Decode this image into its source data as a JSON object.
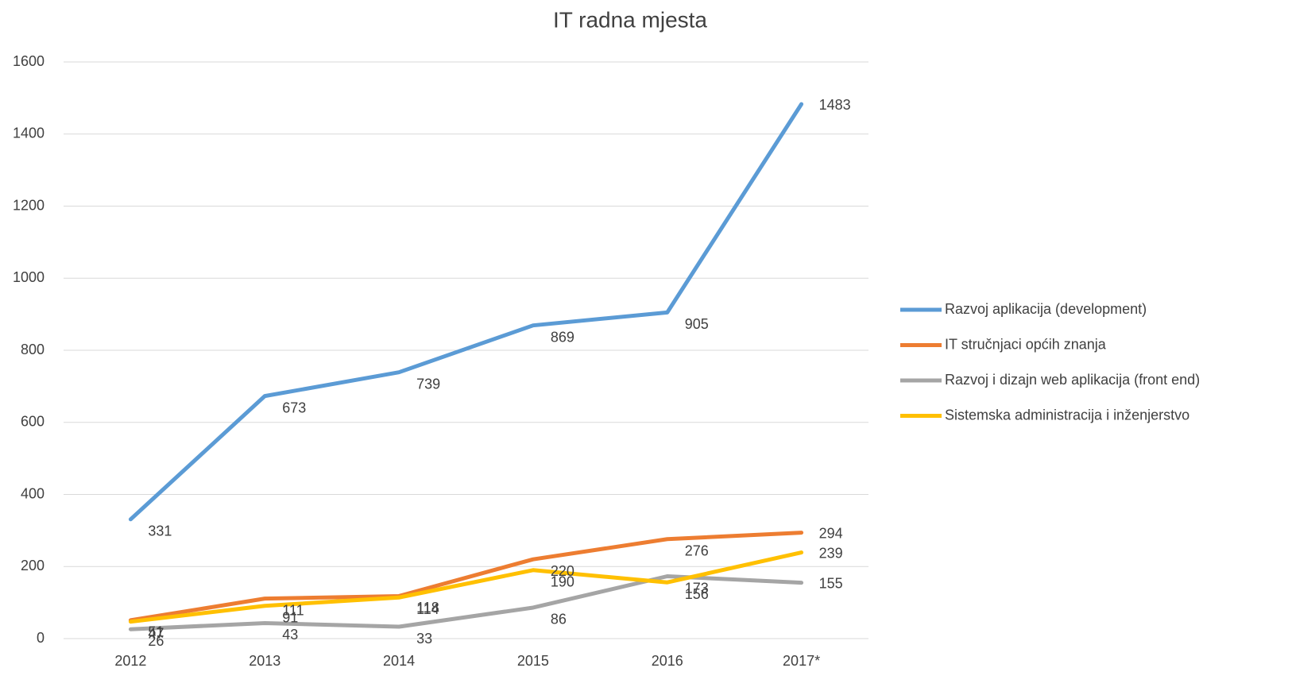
{
  "chart_data": {
    "type": "line",
    "title": "IT radna mjesta",
    "categories": [
      "2012",
      "2013",
      "2014",
      "2015",
      "2016",
      "2017*"
    ],
    "series": [
      {
        "name": "Razvoj aplikacija (development)",
        "color": "#5b9bd5",
        "values": [
          331,
          673,
          739,
          869,
          905,
          1483
        ]
      },
      {
        "name": "IT stručnjaci općih znanja",
        "color": "#ed7d31",
        "values": [
          51,
          111,
          118,
          220,
          276,
          294
        ]
      },
      {
        "name": "Razvoj i dizajn web aplikacija (front end)",
        "color": "#a5a5a5",
        "values": [
          26,
          43,
          33,
          86,
          173,
          155
        ]
      },
      {
        "name": "Sistemska administracija i inženjerstvo",
        "color": "#ffc000",
        "values": [
          47,
          91,
          114,
          190,
          156,
          239
        ]
      }
    ],
    "ylim": [
      0,
      1600
    ],
    "yticks": [
      0,
      200,
      400,
      600,
      800,
      1000,
      1200,
      1400,
      1600
    ],
    "grid": true,
    "legend": "right"
  }
}
